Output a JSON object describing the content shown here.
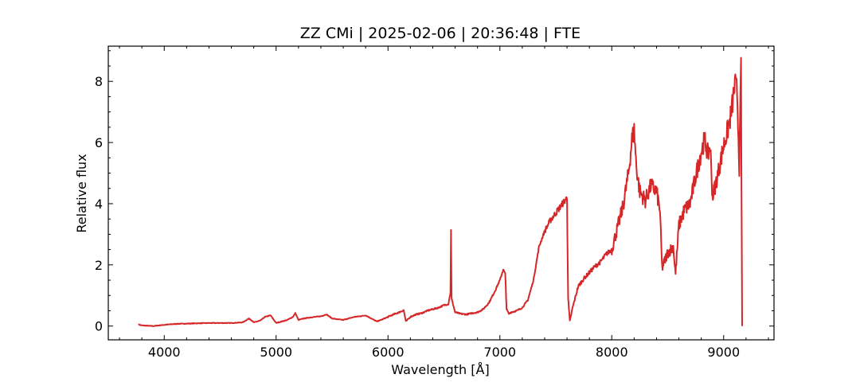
{
  "chart_data": {
    "type": "line",
    "title": "ZZ CMi | 2025-02-06 | 20:36:48 | FTE",
    "xlabel": "Wavelength [Å]",
    "ylabel": "Relative flux",
    "xlim": [
      3500,
      9450
    ],
    "ylim": [
      -0.45,
      9.15
    ],
    "xticks": [
      4000,
      5000,
      6000,
      7000,
      8000,
      9000
    ],
    "yticks": [
      0,
      2,
      4,
      6,
      8
    ],
    "grid": false,
    "line_color": "#d62728",
    "series": [
      {
        "x": [
          3770,
          3800,
          3900,
          4000,
          4100,
          4200,
          4300,
          4400,
          4500,
          4600,
          4700,
          4760,
          4800,
          4860,
          4900,
          4950,
          5000,
          5050,
          5100,
          5150,
          5172,
          5200,
          5250,
          5300,
          5350,
          5400,
          5450,
          5500,
          5550,
          5600,
          5650,
          5700,
          5750,
          5800,
          5850,
          5900,
          5950,
          6000,
          6050,
          6100,
          6140,
          6160,
          6200,
          6250,
          6300,
          6350,
          6400,
          6450,
          6500,
          6540,
          6558,
          6563,
          6568,
          6600,
          6650,
          6700,
          6750,
          6800,
          6850,
          6900,
          6950,
          7000,
          7030,
          7048,
          7060,
          7080,
          7100,
          7150,
          7200,
          7250,
          7300,
          7350,
          7400,
          7450,
          7500,
          7550,
          7580,
          7600,
          7610,
          7625,
          7650,
          7700,
          7750,
          7800,
          7850,
          7900,
          7950,
          8000,
          8050,
          8100,
          8150,
          8180,
          8200,
          8220,
          8250,
          8300,
          8350,
          8400,
          8430,
          8450,
          8500,
          8550,
          8570,
          8600,
          8650,
          8700,
          8750,
          8800,
          8830,
          8860,
          8880,
          8900,
          8950,
          9000,
          9050,
          9080,
          9100,
          9120,
          9140,
          9155,
          9165
        ],
        "y": [
          0.05,
          0.02,
          0.0,
          0.04,
          0.07,
          0.08,
          0.09,
          0.1,
          0.1,
          0.1,
          0.12,
          0.25,
          0.12,
          0.18,
          0.3,
          0.35,
          0.1,
          0.15,
          0.2,
          0.3,
          0.42,
          0.2,
          0.25,
          0.28,
          0.3,
          0.32,
          0.38,
          0.25,
          0.22,
          0.2,
          0.25,
          0.3,
          0.32,
          0.35,
          0.25,
          0.15,
          0.22,
          0.3,
          0.38,
          0.45,
          0.52,
          0.15,
          0.3,
          0.38,
          0.42,
          0.5,
          0.55,
          0.6,
          0.68,
          0.72,
          1.1,
          3.12,
          0.9,
          0.45,
          0.4,
          0.38,
          0.42,
          0.45,
          0.55,
          0.75,
          1.1,
          1.5,
          1.85,
          1.7,
          0.55,
          0.4,
          0.45,
          0.5,
          0.6,
          0.85,
          1.5,
          2.6,
          3.1,
          3.45,
          3.7,
          3.95,
          4.1,
          4.2,
          0.9,
          0.15,
          0.6,
          1.3,
          1.55,
          1.75,
          1.95,
          2.1,
          2.35,
          2.5,
          3.2,
          3.9,
          5.0,
          6.1,
          6.4,
          5.2,
          4.4,
          4.1,
          4.6,
          4.4,
          3.8,
          1.9,
          2.4,
          2.6,
          1.7,
          3.3,
          3.8,
          4.0,
          4.9,
          5.7,
          6.1,
          5.6,
          5.9,
          4.2,
          5.0,
          5.9,
          6.6,
          7.3,
          7.9,
          7.7,
          5.2,
          8.4,
          0.0
        ]
      }
    ]
  }
}
